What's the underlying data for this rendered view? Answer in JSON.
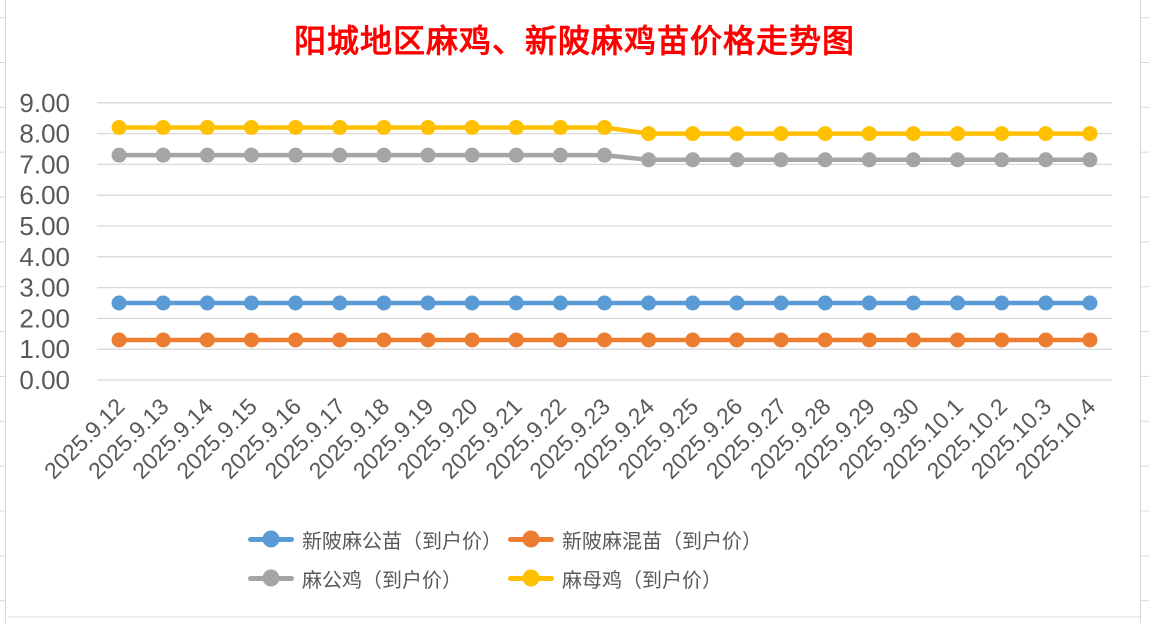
{
  "title": {
    "text": "阳城地区麻鸡、新陂麻鸡苗价格走势图",
    "color": "#FF0000"
  },
  "chart_data": {
    "type": "line",
    "title": "阳城地区麻鸡、新陂麻鸡苗价格走势图",
    "categories": [
      "2025.9.12",
      "2025.9.13",
      "2025.9.14",
      "2025.9.15",
      "2025.9.16",
      "2025.9.17",
      "2025.9.18",
      "2025.9.19",
      "2025.9.20",
      "2025.9.21",
      "2025.9.22",
      "2025.9.23",
      "2025.9.24",
      "2025.9.25",
      "2025.9.26",
      "2025.9.27",
      "2025.9.28",
      "2025.9.29",
      "2025.9.30",
      "2025.10.1",
      "2025.10.2",
      "2025.10.3",
      "2025.10.4"
    ],
    "series": [
      {
        "name": "新陂麻公苗（到户价）",
        "color": "#5B9BD5",
        "values": [
          2.5,
          2.5,
          2.5,
          2.5,
          2.5,
          2.5,
          2.5,
          2.5,
          2.5,
          2.5,
          2.5,
          2.5,
          2.5,
          2.5,
          2.5,
          2.5,
          2.5,
          2.5,
          2.5,
          2.5,
          2.5,
          2.5,
          2.5
        ]
      },
      {
        "name": "新陂麻混苗（到户价）",
        "color": "#ED7D31",
        "values": [
          1.3,
          1.3,
          1.3,
          1.3,
          1.3,
          1.3,
          1.3,
          1.3,
          1.3,
          1.3,
          1.3,
          1.3,
          1.3,
          1.3,
          1.3,
          1.3,
          1.3,
          1.3,
          1.3,
          1.3,
          1.3,
          1.3,
          1.3
        ]
      },
      {
        "name": "麻公鸡（到户价）",
        "color": "#A5A5A5",
        "values": [
          7.3,
          7.3,
          7.3,
          7.3,
          7.3,
          7.3,
          7.3,
          7.3,
          7.3,
          7.3,
          7.3,
          7.3,
          7.15,
          7.15,
          7.15,
          7.15,
          7.15,
          7.15,
          7.15,
          7.15,
          7.15,
          7.15,
          7.15
        ]
      },
      {
        "name": "麻母鸡（到户价）",
        "color": "#FFC000",
        "values": [
          8.2,
          8.2,
          8.2,
          8.2,
          8.2,
          8.2,
          8.2,
          8.2,
          8.2,
          8.2,
          8.2,
          8.2,
          8.0,
          8.0,
          8.0,
          8.0,
          8.0,
          8.0,
          8.0,
          8.0,
          8.0,
          8.0,
          8.0
        ]
      }
    ],
    "ylim": [
      0,
      9
    ],
    "ytick_step": 1,
    "ytick_labels": [
      "0.00",
      "1.00",
      "2.00",
      "3.00",
      "4.00",
      "5.00",
      "6.00",
      "7.00",
      "8.00",
      "9.00"
    ],
    "grid": true,
    "legend_position": "bottom"
  },
  "colors": {
    "gridline": "#D9D9D9",
    "axis_label": "#595959",
    "background": "#FFFFFF"
  }
}
